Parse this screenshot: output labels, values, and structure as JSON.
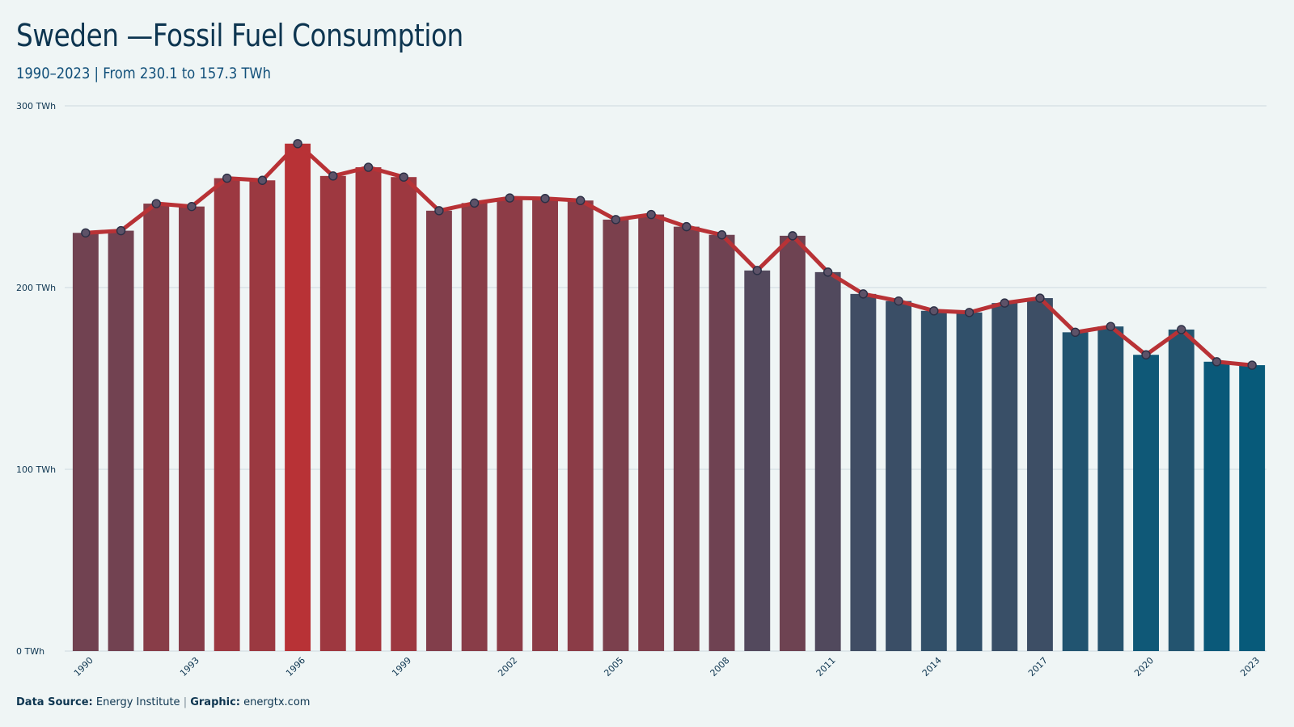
{
  "header": {
    "title": "Sweden —Fossil Fuel Consumption",
    "subtitle": "1990–2023 | From 230.1 to 157.3 TWh"
  },
  "footer": {
    "source_label": "Data Source:",
    "source_value": "Energy Institute",
    "separator": "|",
    "graphic_label": "Graphic:",
    "graphic_value": "energtx.com"
  },
  "colors": {
    "line": "#b83236",
    "marker_fill": "#5d5268",
    "high": "#b83236",
    "low": "#075a7a",
    "grid": "#d3dfe3",
    "text": "#0d3550"
  },
  "chart_data": {
    "type": "bar",
    "unit": "TWh",
    "ylim": [
      0,
      300
    ],
    "yticks": [
      0,
      100,
      200,
      300
    ],
    "ytick_labels": [
      "0 TWh",
      "100 TWh",
      "200 TWh",
      "300 TWh"
    ],
    "categories": [
      1990,
      1991,
      1992,
      1993,
      1994,
      1995,
      1996,
      1997,
      1998,
      1999,
      2000,
      2001,
      2002,
      2003,
      2004,
      2005,
      2006,
      2007,
      2008,
      2009,
      2010,
      2011,
      2012,
      2013,
      2014,
      2015,
      2016,
      2017,
      2018,
      2019,
      2020,
      2021,
      2022,
      2023
    ],
    "xtick_labels": [
      "1990",
      "1993",
      "1996",
      "1999",
      "2002",
      "2005",
      "2008",
      "2011",
      "2014",
      "2017",
      "2020",
      "2023"
    ],
    "values": [
      230.1,
      231.3,
      246.2,
      244.6,
      260.2,
      259.0,
      279.2,
      261.4,
      266.2,
      260.8,
      242.3,
      246.5,
      249.3,
      249.0,
      247.9,
      237.4,
      240.2,
      233.5,
      229.0,
      209.4,
      228.5,
      208.5,
      196.5,
      192.6,
      187.2,
      186.3,
      191.5,
      194.2,
      175.4,
      178.6,
      163.0,
      176.9,
      159.2,
      157.3
    ],
    "overlay_line": true,
    "markers": true,
    "grid": true,
    "legend": "none"
  }
}
